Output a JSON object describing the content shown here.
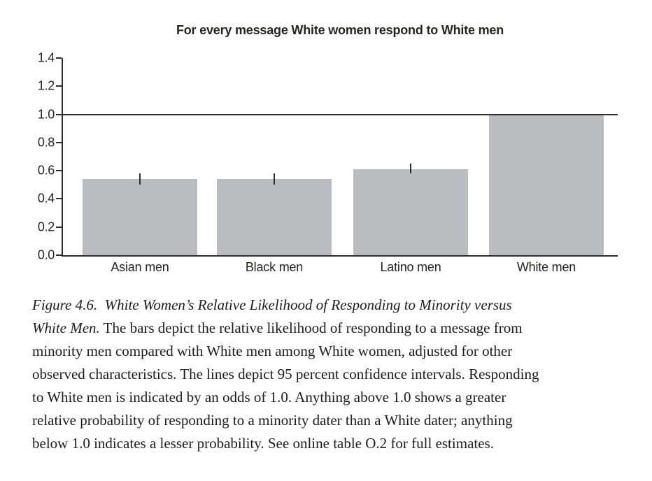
{
  "chart_data": {
    "type": "bar",
    "title": "For every message White women respond to White men",
    "categories": [
      "Asian men",
      "Black men",
      "Latino men",
      "White men"
    ],
    "values": [
      0.54,
      0.54,
      0.61,
      1.0
    ],
    "ci_low": [
      0.5,
      0.5,
      0.58,
      null
    ],
    "ci_high": [
      0.58,
      0.58,
      0.65,
      null
    ],
    "reference_line": 1.0,
    "ylim": [
      0.0,
      1.4
    ],
    "ytick_labels": [
      "0.0",
      "0.2",
      "0.4",
      "0.6",
      "0.8",
      "1.0",
      "1.2",
      "1.4"
    ],
    "xlabel": "",
    "ylabel": "",
    "grid": false,
    "legend": "none",
    "bar_color": "#bbbcc0",
    "axis_color": "#2e2d2c"
  },
  "caption": {
    "lines": [
      [
        {
          "t": "Figure 4.6.  White Women’s Relative Likelihood of Responding to Minority versus",
          "i": true
        }
      ],
      [
        {
          "t": "White Men.",
          "i": true
        },
        {
          "t": " The bars depict the relative likelihood of responding to a message from",
          "i": false
        }
      ],
      [
        {
          "t": "minority men compared with White men among White women, adjusted for other",
          "i": false
        }
      ],
      [
        {
          "t": "observed characteristics. The lines depict 95 percent confidence intervals. Responding",
          "i": false
        }
      ],
      [
        {
          "t": "to White men is indicated by an odds of 1.0. Anything above 1.0 shows a greater",
          "i": false
        }
      ],
      [
        {
          "t": "relative probability of responding to a minority dater than a White dater; anything",
          "i": false
        }
      ],
      [
        {
          "t": "below 1.0 indicates a lesser probability. See online table O.2 for full estimates.",
          "i": false
        }
      ]
    ]
  }
}
